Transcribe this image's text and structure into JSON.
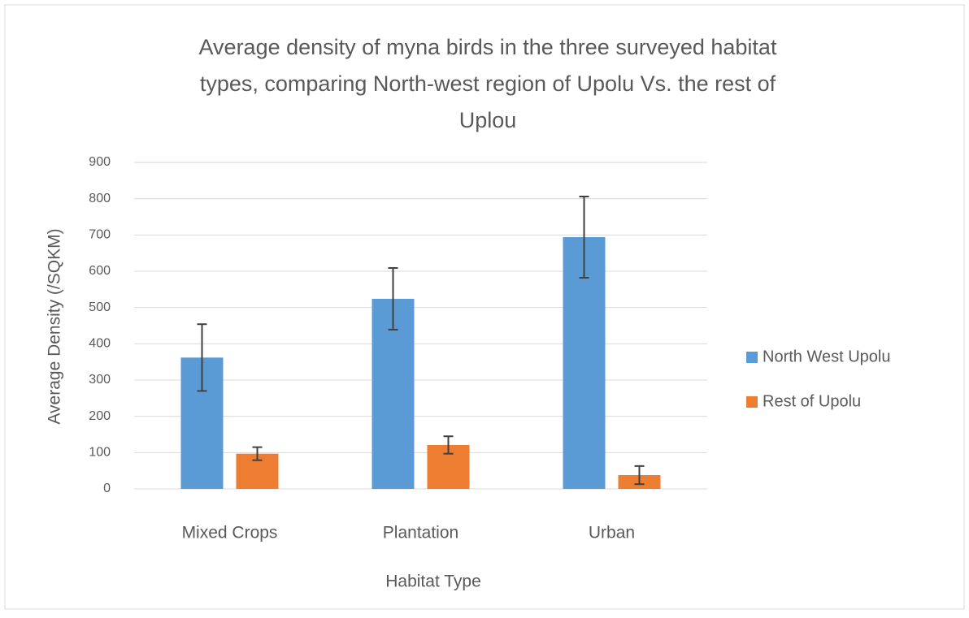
{
  "chart_data": {
    "type": "bar",
    "title": [
      "Average density of myna birds in the three surveyed habitat",
      "types, comparing North-west region of Upolu Vs. the rest of",
      "Uplou"
    ],
    "x_label": "Habitat Type",
    "y_label": "Average Density (/SQKM)",
    "categories": [
      "Mixed Crops",
      "Plantation",
      "Urban"
    ],
    "series": [
      {
        "name": "North West Upolu",
        "color": "#5b9bd5",
        "values": [
          362,
          524,
          694
        ],
        "errors": [
          92,
          85,
          112
        ]
      },
      {
        "name": "Rest of Upolu",
        "color": "#ed7d31",
        "values": [
          97,
          121,
          38
        ],
        "errors": [
          18,
          24,
          25
        ]
      }
    ],
    "ylim": [
      0,
      900
    ],
    "yticks": [
      0,
      100,
      200,
      300,
      400,
      500,
      600,
      700,
      800,
      900
    ],
    "grid": true,
    "legend": "right"
  }
}
